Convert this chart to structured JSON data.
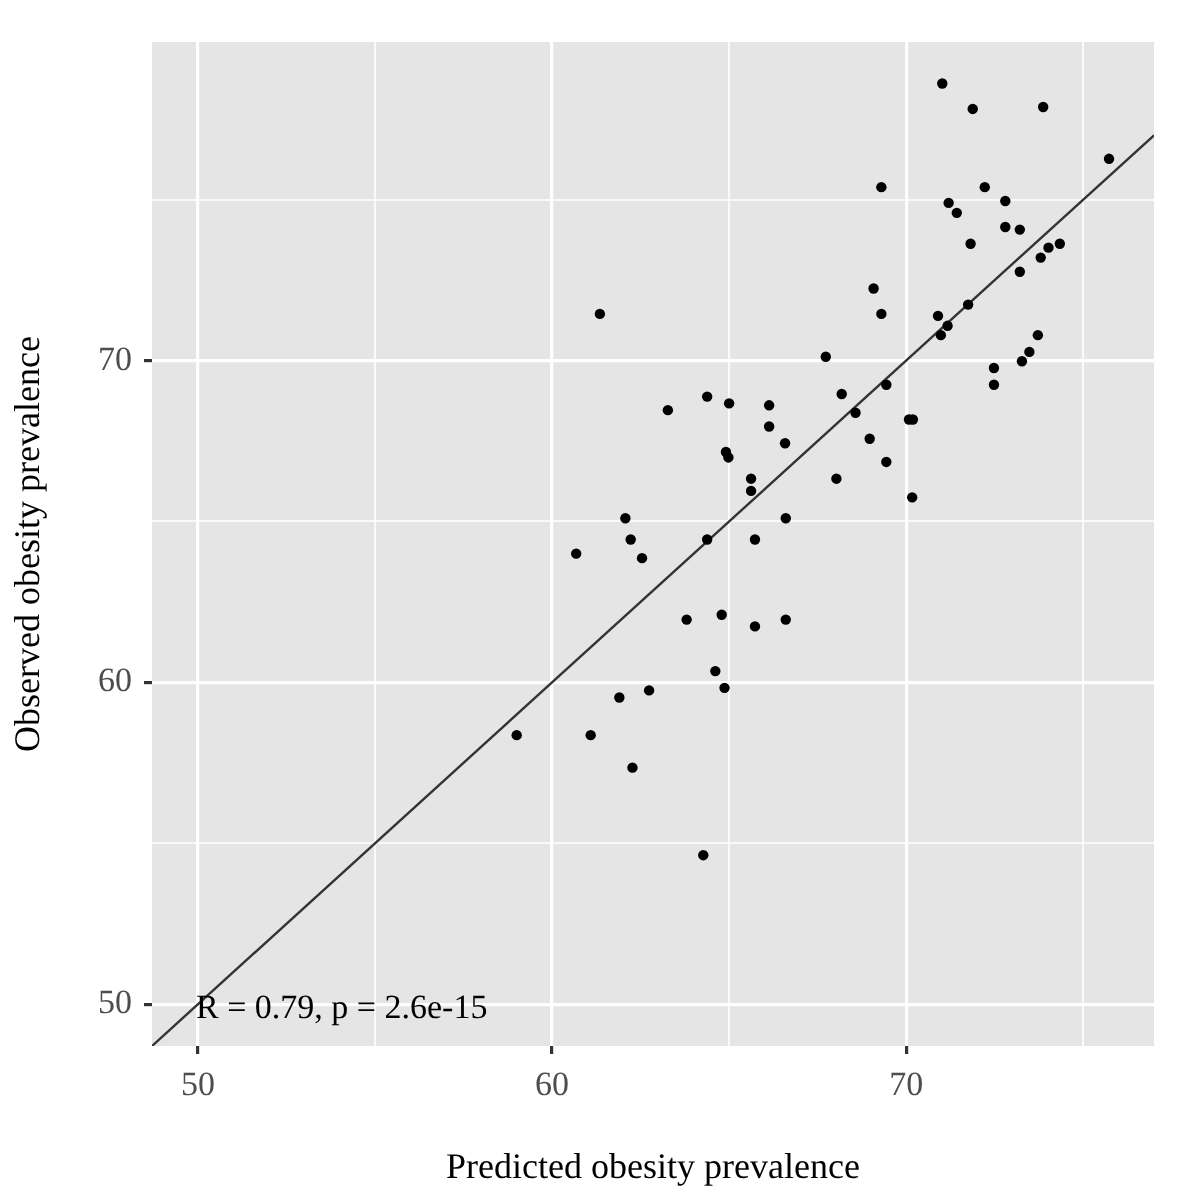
{
  "chart_data": {
    "type": "scatter",
    "xlabel": "Predicted obesity prevalence",
    "ylabel": "Observed obesity prevalence",
    "xlim": [
      48.7,
      77
    ],
    "ylim": [
      48.7,
      79.9
    ],
    "xticks": [
      50,
      {
        "value": 55,
        "label": null
      },
      60,
      {
        "value": 65,
        "label": null
      },
      70,
      {
        "value": 75,
        "label": null
      }
    ],
    "yticks": [
      50,
      {
        "value": 55,
        "label": null
      },
      60,
      {
        "value": 65,
        "label": null
      },
      70,
      {
        "value": 75,
        "label": null
      }
    ],
    "grid": true,
    "legend": false,
    "marker": "circle",
    "annotations": [
      "R = 0.79, p = 2.6e-15"
    ],
    "series": [
      {
        "type": "scatter",
        "color": "#000000",
        "x": [
          61.35,
          62.07,
          62.22,
          60.68,
          62.54,
          71.02,
          71.88,
          73.87,
          75.73,
          69.3,
          72.22,
          71.2,
          71.43,
          72.8,
          72.8,
          73.21,
          71.82,
          74.34,
          74.02,
          73.8,
          73.21,
          69.08,
          69.3,
          71.75,
          70.9,
          71.17,
          70.98,
          73.72,
          73.48,
          73.27,
          72.48,
          72.48,
          67.73,
          69.44,
          68.18,
          68.57,
          70.08,
          70.19,
          68.97,
          69.44,
          70.17,
          68.03,
          64.38,
          65.0,
          66.13,
          63.27,
          66.13,
          66.58,
          64.91,
          64.98,
          65.62,
          65.62,
          66.6,
          64.38,
          65.73,
          59.0,
          61.09,
          61.9,
          62.27,
          63.8,
          64.79,
          65.73,
          66.6,
          64.61,
          64.87,
          62.74,
          64.27
        ],
        "values": [
          71.45,
          65.1,
          64.44,
          64.0,
          63.86,
          78.61,
          77.82,
          77.88,
          76.27,
          75.39,
          75.39,
          74.9,
          74.59,
          74.96,
          74.15,
          74.07,
          73.63,
          73.63,
          73.51,
          73.2,
          72.76,
          72.24,
          71.45,
          71.74,
          71.39,
          71.08,
          70.79,
          70.79,
          70.27,
          69.98,
          69.77,
          69.25,
          70.12,
          69.25,
          68.96,
          68.38,
          68.17,
          68.17,
          67.57,
          66.85,
          65.75,
          66.33,
          68.88,
          68.67,
          68.61,
          68.46,
          67.95,
          67.43,
          67.16,
          66.99,
          66.33,
          65.95,
          65.1,
          64.44,
          64.44,
          58.36,
          58.36,
          59.53,
          57.35,
          61.95,
          62.1,
          61.74,
          61.95,
          60.35,
          59.83,
          59.75,
          54.63
        ]
      },
      {
        "type": "line",
        "color": "#333333",
        "x": [
          48.7,
          77
        ],
        "values": [
          48.7,
          77
        ],
        "marker": "none"
      }
    ]
  }
}
